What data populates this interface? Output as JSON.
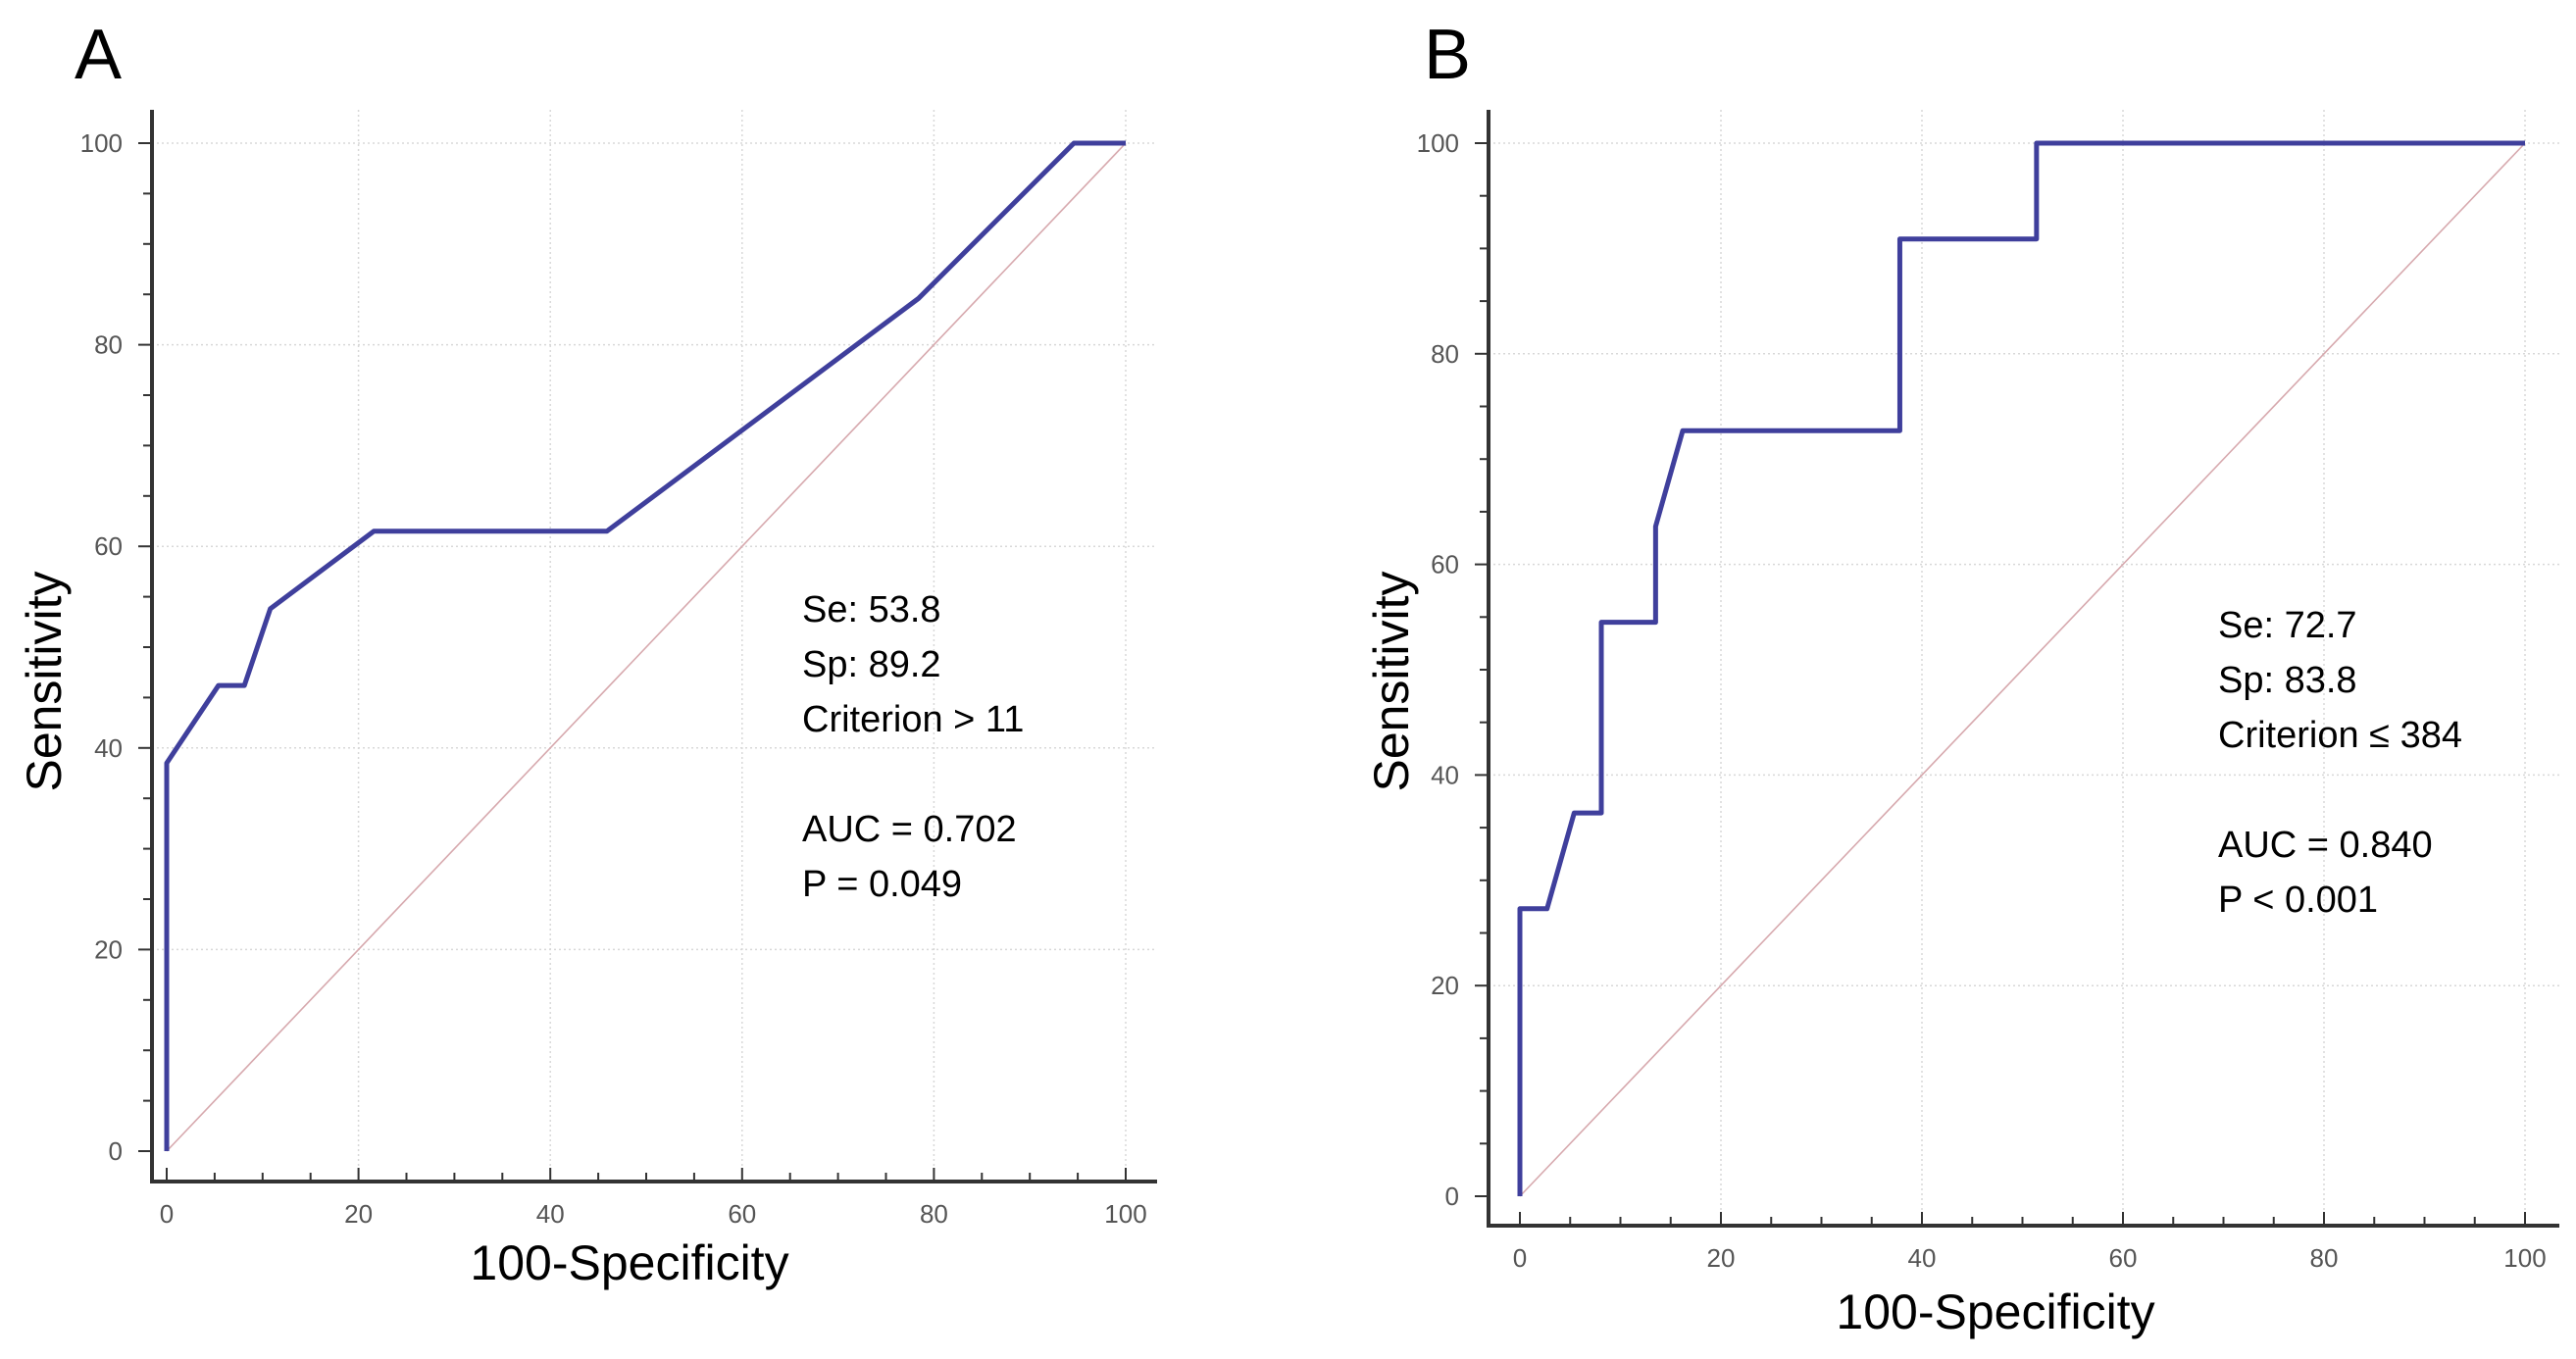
{
  "chart_data": [
    {
      "type": "line",
      "panel": "A",
      "xlabel": "100-Specificity",
      "ylabel": "Sensitivity",
      "xlim": [
        0,
        100
      ],
      "ylim": [
        0,
        100
      ],
      "x_ticks": [
        0,
        20,
        40,
        60,
        80,
        100
      ],
      "y_ticks": [
        0,
        20,
        40,
        60,
        80,
        100
      ],
      "grid": true,
      "series": [
        {
          "name": "ROC",
          "color": "#3f3f9c",
          "x": [
            0,
            0,
            5.4,
            8.1,
            10.8,
            21.6,
            45.9,
            78.4,
            94.6,
            100
          ],
          "y": [
            0,
            38.5,
            46.2,
            46.2,
            53.8,
            61.5,
            61.5,
            84.6,
            100,
            100
          ]
        },
        {
          "name": "Reference",
          "color": "#d7a9ae",
          "x": [
            0,
            100
          ],
          "y": [
            0,
            100
          ]
        }
      ],
      "annotations": [
        "Se: 53.8",
        "Sp: 89.2",
        "Criterion > 11",
        "AUC = 0.702",
        "P = 0.049"
      ]
    },
    {
      "type": "line",
      "panel": "B",
      "xlabel": "100-Specificity",
      "ylabel": "Sensitivity",
      "xlim": [
        0,
        100
      ],
      "ylim": [
        0,
        100
      ],
      "x_ticks": [
        0,
        20,
        40,
        60,
        80,
        100
      ],
      "y_ticks": [
        0,
        20,
        40,
        60,
        80,
        100
      ],
      "grid": true,
      "series": [
        {
          "name": "ROC",
          "color": "#3f3f9c",
          "x": [
            0,
            0,
            2.7,
            5.4,
            8.1,
            8.1,
            13.5,
            13.5,
            16.2,
            37.8,
            37.8,
            51.4,
            51.4,
            100
          ],
          "y": [
            0,
            27.3,
            27.3,
            36.4,
            36.4,
            54.5,
            54.5,
            63.6,
            72.7,
            72.7,
            90.9,
            90.9,
            100,
            100
          ]
        },
        {
          "name": "Reference",
          "color": "#d7a9ae",
          "x": [
            0,
            100
          ],
          "y": [
            0,
            100
          ]
        }
      ],
      "annotations": [
        "Se: 72.7",
        "Sp: 83.8",
        "Criterion ≤ 384",
        "AUC = 0.840",
        "P < 0.001"
      ]
    }
  ]
}
